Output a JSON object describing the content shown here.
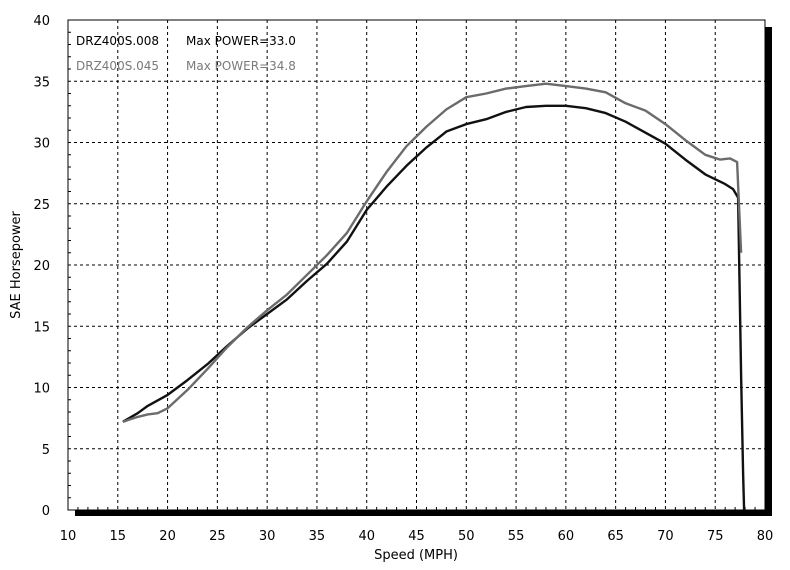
{
  "chart_data": {
    "type": "line",
    "title": "",
    "xlabel": "Speed (MPH)",
    "ylabel": "SAE Horsepower",
    "xlim": [
      10,
      80
    ],
    "ylim": [
      0,
      40
    ],
    "x_ticks": [
      "10",
      "15",
      "20",
      "25",
      "30",
      "35",
      "40",
      "45",
      "50",
      "55",
      "60",
      "65",
      "70",
      "75",
      "80"
    ],
    "y_ticks": [
      "0",
      "5",
      "10",
      "15",
      "20",
      "25",
      "30",
      "35",
      "40"
    ],
    "grid": true,
    "legend": [
      {
        "name": "DRZ400S.008",
        "max_label": "Max POWER=33.0",
        "color": "#000000"
      },
      {
        "name": "DRZ400S.045",
        "max_label": "Max POWER=34.8",
        "color": "#7a7a7a"
      }
    ],
    "series": [
      {
        "name": "DRZ400S.008",
        "color": "#111111",
        "x": [
          15.5,
          17,
          18,
          20,
          22,
          24,
          26,
          28,
          30,
          32,
          34,
          36,
          38,
          40,
          42,
          44,
          46,
          48,
          50,
          52,
          54,
          56,
          58,
          60,
          62,
          64,
          66,
          68,
          70,
          72,
          74,
          76,
          76.8,
          77.3,
          77.6,
          77.8,
          77.9
        ],
        "y": [
          7.2,
          7.9,
          8.5,
          9.4,
          10.6,
          11.9,
          13.4,
          14.8,
          16.0,
          17.2,
          18.7,
          20.1,
          21.9,
          24.5,
          26.4,
          28.1,
          29.6,
          30.9,
          31.5,
          31.9,
          32.5,
          32.9,
          33.0,
          33.0,
          32.8,
          32.4,
          31.7,
          30.8,
          29.9,
          28.6,
          27.4,
          26.6,
          26.2,
          25.5,
          11.0,
          3.0,
          0.0
        ]
      },
      {
        "name": "DRZ400S.045",
        "color": "#6b6b6b",
        "x": [
          15.5,
          17,
          18,
          19,
          20,
          22,
          24,
          26,
          28,
          30,
          32,
          34,
          36,
          38,
          40,
          42,
          44,
          46,
          48,
          50,
          52,
          54,
          56,
          58,
          60,
          62,
          64,
          66,
          68,
          70,
          72,
          74,
          75.5,
          76.5,
          77.2,
          77.6
        ],
        "y": [
          7.2,
          7.6,
          7.8,
          7.9,
          8.3,
          9.8,
          11.5,
          13.3,
          14.9,
          16.3,
          17.6,
          19.2,
          20.8,
          22.6,
          25.2,
          27.6,
          29.7,
          31.3,
          32.7,
          33.7,
          34.0,
          34.4,
          34.6,
          34.8,
          34.6,
          34.4,
          34.1,
          33.2,
          32.6,
          31.5,
          30.2,
          29.0,
          28.6,
          28.7,
          28.4,
          21.0
        ]
      }
    ]
  }
}
